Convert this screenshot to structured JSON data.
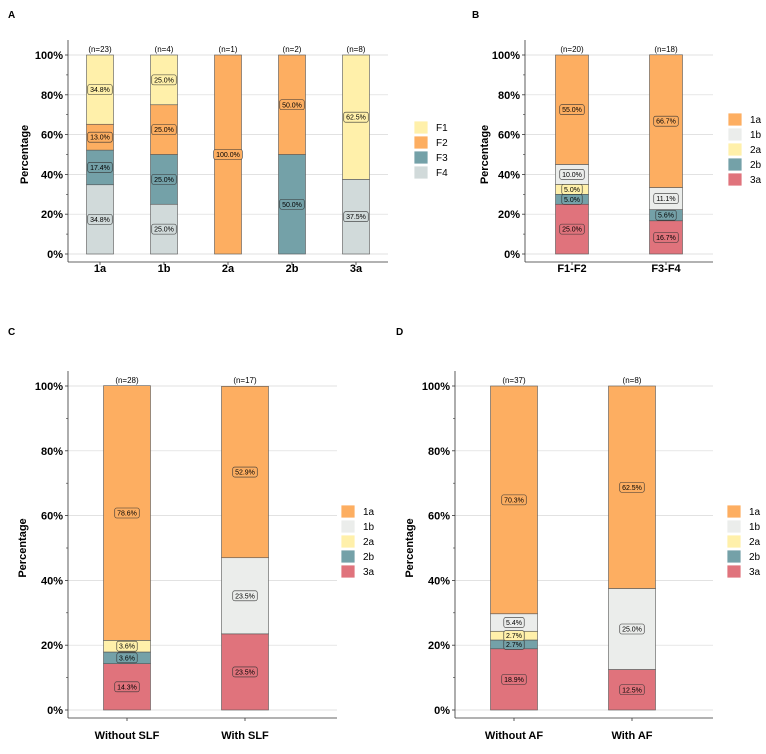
{
  "colors": {
    "1a": "#FDAE61",
    "1b": "#EBEDEB",
    "2a": "#FFF0AA",
    "2b": "#74A1A8",
    "3a": "#E0737C",
    "F1": "#FFF0AA",
    "F2": "#FDAE61",
    "F3": "#74A1A8",
    "F4": "#D1DADA"
  },
  "chart_data": [
    {
      "panel": "A",
      "type": "bar",
      "stacked": true,
      "ylabel": "Percentage",
      "yticks": [
        "0%",
        "20%",
        "40%",
        "60%",
        "80%",
        "100%"
      ],
      "ylim": [
        0,
        100
      ],
      "stack_order": [
        "F4",
        "F3",
        "F2",
        "F1"
      ],
      "legend": [
        "F1",
        "F2",
        "F3",
        "F4"
      ],
      "categories": [
        "1a",
        "1b",
        "2a",
        "2b",
        "3a"
      ],
      "n_labels": [
        "(n=23)",
        "(n=4)",
        "(n=1)",
        "(n=2)",
        "(n=8)"
      ],
      "series": [
        {
          "name": "F1",
          "values": [
            34.8,
            25.0,
            0,
            0,
            62.5
          ],
          "labels": [
            "34.8%",
            "25.0%",
            "",
            "",
            "62.5%"
          ]
        },
        {
          "name": "F2",
          "values": [
            13.0,
            25.0,
            100.0,
            50.0,
            0
          ],
          "labels": [
            "13.0%",
            "25.0%",
            "100.0%",
            "50.0%",
            ""
          ]
        },
        {
          "name": "F3",
          "values": [
            17.4,
            25.0,
            0,
            50.0,
            0
          ],
          "labels": [
            "17.4%",
            "25.0%",
            "",
            "50.0%",
            ""
          ]
        },
        {
          "name": "F4",
          "values": [
            34.8,
            25.0,
            0,
            0,
            37.5
          ],
          "labels": [
            "34.8%",
            "25.0%",
            "",
            "",
            "37.5%"
          ]
        }
      ]
    },
    {
      "panel": "B",
      "type": "bar",
      "stacked": true,
      "ylabel": "Percentage",
      "yticks": [
        "0%",
        "20%",
        "40%",
        "60%",
        "80%",
        "100%"
      ],
      "ylim": [
        0,
        100
      ],
      "stack_order": [
        "3a",
        "2b",
        "2a",
        "1b",
        "1a"
      ],
      "legend": [
        "1a",
        "1b",
        "2a",
        "2b",
        "3a"
      ],
      "categories": [
        "F1-F2",
        "F3-F4"
      ],
      "n_labels": [
        "(n=20)",
        "(n=18)"
      ],
      "series": [
        {
          "name": "1a",
          "values": [
            55.0,
            66.7
          ],
          "labels": [
            "55.0%",
            "66.7%"
          ]
        },
        {
          "name": "1b",
          "values": [
            10.0,
            11.1
          ],
          "labels": [
            "10.0%",
            "11.1%"
          ]
        },
        {
          "name": "2a",
          "values": [
            5.0,
            0
          ],
          "labels": [
            "5.0%",
            ""
          ]
        },
        {
          "name": "2b",
          "values": [
            5.0,
            5.6
          ],
          "labels": [
            "5.0%",
            "5.6%"
          ]
        },
        {
          "name": "3a",
          "values": [
            25.0,
            16.7
          ],
          "labels": [
            "25.0%",
            "16.7%"
          ]
        }
      ]
    },
    {
      "panel": "C",
      "type": "bar",
      "stacked": true,
      "ylabel": "Percentage",
      "yticks": [
        "0%",
        "20%",
        "40%",
        "60%",
        "80%",
        "100%"
      ],
      "ylim": [
        0,
        100
      ],
      "stack_order": [
        "3a",
        "2b",
        "2a",
        "1b",
        "1a"
      ],
      "legend": [
        "1a",
        "1b",
        "2a",
        "2b",
        "3a"
      ],
      "categories": [
        "Without SLF",
        "With SLF"
      ],
      "n_labels": [
        "(n=28)",
        "(n=17)"
      ],
      "series": [
        {
          "name": "1a",
          "values": [
            78.6,
            52.9
          ],
          "labels": [
            "78.6%",
            "52.9%"
          ]
        },
        {
          "name": "1b",
          "values": [
            0,
            23.5
          ],
          "labels": [
            "",
            "23.5%"
          ]
        },
        {
          "name": "2a",
          "values": [
            3.6,
            0
          ],
          "labels": [
            "3.6%",
            ""
          ]
        },
        {
          "name": "2b",
          "values": [
            3.6,
            0
          ],
          "labels": [
            "3.6%",
            ""
          ]
        },
        {
          "name": "3a",
          "values": [
            14.3,
            23.5
          ],
          "labels": [
            "14.3%",
            "23.5%"
          ]
        }
      ]
    },
    {
      "panel": "D",
      "type": "bar",
      "stacked": true,
      "ylabel": "Percentage",
      "yticks": [
        "0%",
        "20%",
        "40%",
        "60%",
        "80%",
        "100%"
      ],
      "ylim": [
        0,
        100
      ],
      "stack_order": [
        "3a",
        "2b",
        "2a",
        "1b",
        "1a"
      ],
      "legend": [
        "1a",
        "1b",
        "2a",
        "2b",
        "3a"
      ],
      "categories": [
        "Without AF",
        "With AF"
      ],
      "n_labels": [
        "(n=37)",
        "(n=8)"
      ],
      "series": [
        {
          "name": "1a",
          "values": [
            70.3,
            62.5
          ],
          "labels": [
            "70.3%",
            "62.5%"
          ]
        },
        {
          "name": "1b",
          "values": [
            5.4,
            25.0
          ],
          "labels": [
            "5.4%",
            "25.0%"
          ]
        },
        {
          "name": "2a",
          "values": [
            2.7,
            0
          ],
          "labels": [
            "2.7%",
            ""
          ]
        },
        {
          "name": "2b",
          "values": [
            2.7,
            0
          ],
          "labels": [
            "2.7%",
            ""
          ]
        },
        {
          "name": "3a",
          "values": [
            18.9,
            12.5
          ],
          "labels": [
            "18.9%",
            "12.5%"
          ]
        }
      ]
    }
  ]
}
